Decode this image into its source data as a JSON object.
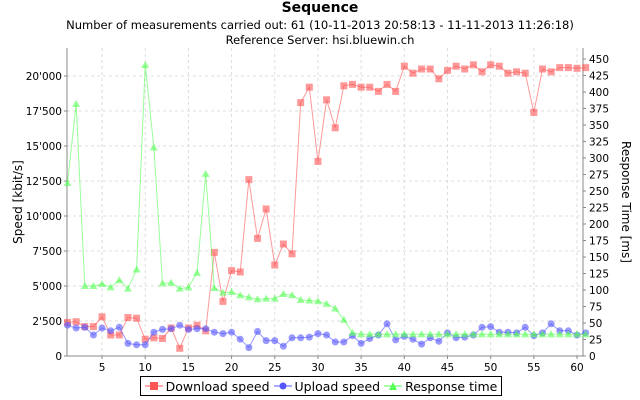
{
  "header": {
    "title": "Sequence",
    "subtitle": "Number of measurements carried out: 61 (10-11-2013 20:58:13 - 11-11-2013 11:26:18)",
    "server": "Reference Server: hsi.bluewin.ch"
  },
  "legend": {
    "download": "Download speed",
    "upload": "Upload speed",
    "response": "Response time"
  },
  "chart_data": {
    "type": "line",
    "title": "Sequence",
    "subtitle": "Number of measurements carried out: 61 (10-11-2013 20:58:13 - 11-11-2013 11:26:18) / Reference Server: hsi.bluewin.ch",
    "xlabel": "",
    "ylabel": "Speed [kbit/s]",
    "y2label": "Response Time [ms]",
    "xlim": [
      1,
      61
    ],
    "ylim": [
      0,
      22000
    ],
    "y2lim": [
      0,
      471
    ],
    "x_ticks": [
      5,
      10,
      15,
      20,
      25,
      30,
      35,
      40,
      45,
      50,
      55,
      60
    ],
    "y_ticks": [
      "0",
      "2'500",
      "5'000",
      "7'500",
      "10'000",
      "12'500",
      "15'000",
      "17'500",
      "20'000"
    ],
    "y2_ticks": [
      0,
      25,
      50,
      75,
      100,
      125,
      150,
      175,
      200,
      225,
      250,
      275,
      300,
      325,
      350,
      375,
      400,
      425,
      450
    ],
    "grid": true,
    "legend_position": "bottom",
    "x": [
      1,
      2,
      3,
      4,
      5,
      6,
      7,
      8,
      9,
      10,
      11,
      12,
      13,
      14,
      15,
      16,
      17,
      18,
      19,
      20,
      21,
      22,
      23,
      24,
      25,
      26,
      27,
      28,
      29,
      30,
      31,
      32,
      33,
      34,
      35,
      36,
      37,
      38,
      39,
      40,
      41,
      42,
      43,
      44,
      45,
      46,
      47,
      48,
      49,
      50,
      51,
      52,
      53,
      54,
      55,
      56,
      57,
      58,
      59,
      60,
      61
    ],
    "series": [
      {
        "name": "Download speed",
        "axis": "left",
        "color": "#ff5555",
        "marker": "square",
        "values": [
          2400,
          2450,
          2100,
          2100,
          2800,
          1500,
          1500,
          2750,
          2700,
          1200,
          1300,
          1250,
          2000,
          550,
          2000,
          2200,
          1800,
          7400,
          3900,
          6100,
          6000,
          12600,
          8400,
          10500,
          6500,
          8000,
          7300,
          18100,
          19200,
          13900,
          18300,
          16300,
          19300,
          19400,
          19200,
          19200,
          18900,
          19400,
          18900,
          20700,
          20200,
          20500,
          20500,
          19800,
          20400,
          20700,
          20500,
          20800,
          20300,
          20800,
          20700,
          20200,
          20300,
          20200,
          17400,
          20500,
          20300,
          20600,
          20600,
          20550,
          20600
        ]
      },
      {
        "name": "Upload speed",
        "axis": "left",
        "color": "#5555ff",
        "marker": "circle",
        "values": [
          2200,
          2000,
          2050,
          1500,
          2000,
          1800,
          2050,
          900,
          800,
          800,
          1700,
          1900,
          1950,
          2200,
          1900,
          1950,
          1950,
          1700,
          1600,
          1700,
          1200,
          600,
          1750,
          1100,
          1100,
          700,
          1300,
          1300,
          1350,
          1600,
          1500,
          1000,
          1000,
          1450,
          900,
          1250,
          1500,
          2300,
          1150,
          1400,
          1200,
          850,
          1300,
          1050,
          1650,
          1300,
          1350,
          1500,
          2050,
          2100,
          1700,
          1700,
          1650,
          2050,
          1450,
          1650,
          2300,
          1800,
          1800,
          1500,
          1650
        ]
      },
      {
        "name": "Response time",
        "axis": "right",
        "color": "#55ff55",
        "marker": "triangle",
        "values": [
          262,
          382,
          106,
          106,
          109,
          104,
          115,
          102,
          131,
          441,
          316,
          110,
          111,
          102,
          104,
          126,
          276,
          103,
          96,
          97,
          92,
          89,
          86,
          87,
          87,
          94,
          92,
          85,
          84,
          83,
          79,
          72,
          55,
          35,
          33,
          33,
          33,
          33,
          33,
          33,
          33,
          33,
          33,
          33,
          33,
          33,
          33,
          33,
          33,
          33,
          33,
          33,
          33,
          33,
          33,
          33,
          33,
          33,
          33,
          33,
          33
        ]
      }
    ]
  }
}
